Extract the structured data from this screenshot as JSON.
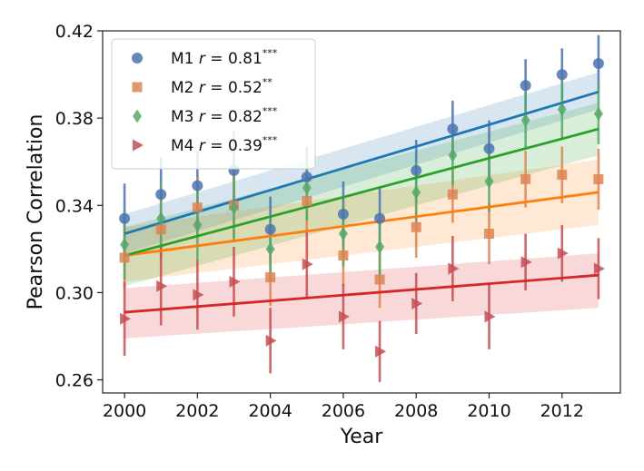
{
  "chart_data": {
    "type": "scatter",
    "xlabel": "Year",
    "ylabel": "Pearson Correlation",
    "xlim": [
      1999.4,
      2013.6
    ],
    "ylim": [
      0.254,
      0.42
    ],
    "xticks": [
      2000,
      2002,
      2004,
      2006,
      2008,
      2010,
      2012
    ],
    "yticks": [
      0.26,
      0.3,
      0.34,
      0.38,
      0.42
    ],
    "ytick_labels": [
      "0.26",
      "0.30",
      "0.34",
      "0.38",
      "0.42"
    ],
    "legend_position": "top-left",
    "x": [
      2000,
      2001,
      2002,
      2003,
      2004,
      2005,
      2006,
      2007,
      2008,
      2009,
      2010,
      2011,
      2012,
      2013
    ],
    "series": [
      {
        "name": "M1",
        "r_label": "r = 0.81",
        "stars": "***",
        "color": "#4c72b0",
        "fit_color": "#1f77b4",
        "marker": "circle",
        "values": [
          0.334,
          0.345,
          0.349,
          0.356,
          0.329,
          0.353,
          0.336,
          0.334,
          0.356,
          0.375,
          0.366,
          0.395,
          0.4,
          0.405
        ],
        "err": [
          0.016,
          0.017,
          0.016,
          0.018,
          0.015,
          0.014,
          0.015,
          0.014,
          0.014,
          0.013,
          0.013,
          0.012,
          0.012,
          0.013
        ],
        "fit": [
          0.327,
          0.392
        ],
        "band": [
          [
            0.318,
            0.336
          ],
          [
            0.384,
            0.401
          ]
        ]
      },
      {
        "name": "M2",
        "r_label": "r = 0.52",
        "stars": "**",
        "color": "#dd8452",
        "fit_color": "#ff7f0e",
        "marker": "square",
        "values": [
          0.316,
          0.329,
          0.339,
          0.34,
          0.307,
          0.342,
          0.317,
          0.306,
          0.33,
          0.345,
          0.327,
          0.352,
          0.354,
          0.352
        ],
        "err": [
          0.014,
          0.014,
          0.014,
          0.015,
          0.013,
          0.013,
          0.014,
          0.013,
          0.014,
          0.013,
          0.014,
          0.013,
          0.013,
          0.014
        ],
        "fit": [
          0.317,
          0.346
        ],
        "band": [
          [
            0.305,
            0.33
          ],
          [
            0.331,
            0.361
          ]
        ]
      },
      {
        "name": "M3",
        "r_label": "r = 0.82",
        "stars": "***",
        "color": "#55a868",
        "fit_color": "#2ca02c",
        "marker": "diamond",
        "values": [
          0.322,
          0.334,
          0.331,
          0.339,
          0.32,
          0.348,
          0.327,
          0.321,
          0.346,
          0.363,
          0.351,
          0.379,
          0.384,
          0.382
        ],
        "err": [
          0.016,
          0.017,
          0.016,
          0.016,
          0.015,
          0.015,
          0.015,
          0.015,
          0.014,
          0.014,
          0.014,
          0.013,
          0.013,
          0.014
        ],
        "fit": [
          0.317,
          0.375
        ],
        "band": [
          [
            0.303,
            0.33
          ],
          [
            0.363,
            0.387
          ]
        ]
      },
      {
        "name": "M4",
        "r_label": "r = 0.39",
        "stars": "***",
        "color": "#c44e52",
        "fit_color": "#d62728",
        "marker": "triangle-right",
        "values": [
          0.288,
          0.303,
          0.299,
          0.305,
          0.278,
          0.313,
          0.289,
          0.273,
          0.295,
          0.311,
          0.289,
          0.314,
          0.318,
          0.311
        ],
        "err": [
          0.017,
          0.018,
          0.016,
          0.016,
          0.015,
          0.016,
          0.015,
          0.014,
          0.014,
          0.015,
          0.015,
          0.013,
          0.013,
          0.014
        ],
        "fit": [
          0.291,
          0.308
        ],
        "band": [
          [
            0.279,
            0.302
          ],
          [
            0.293,
            0.318
          ]
        ]
      }
    ]
  }
}
